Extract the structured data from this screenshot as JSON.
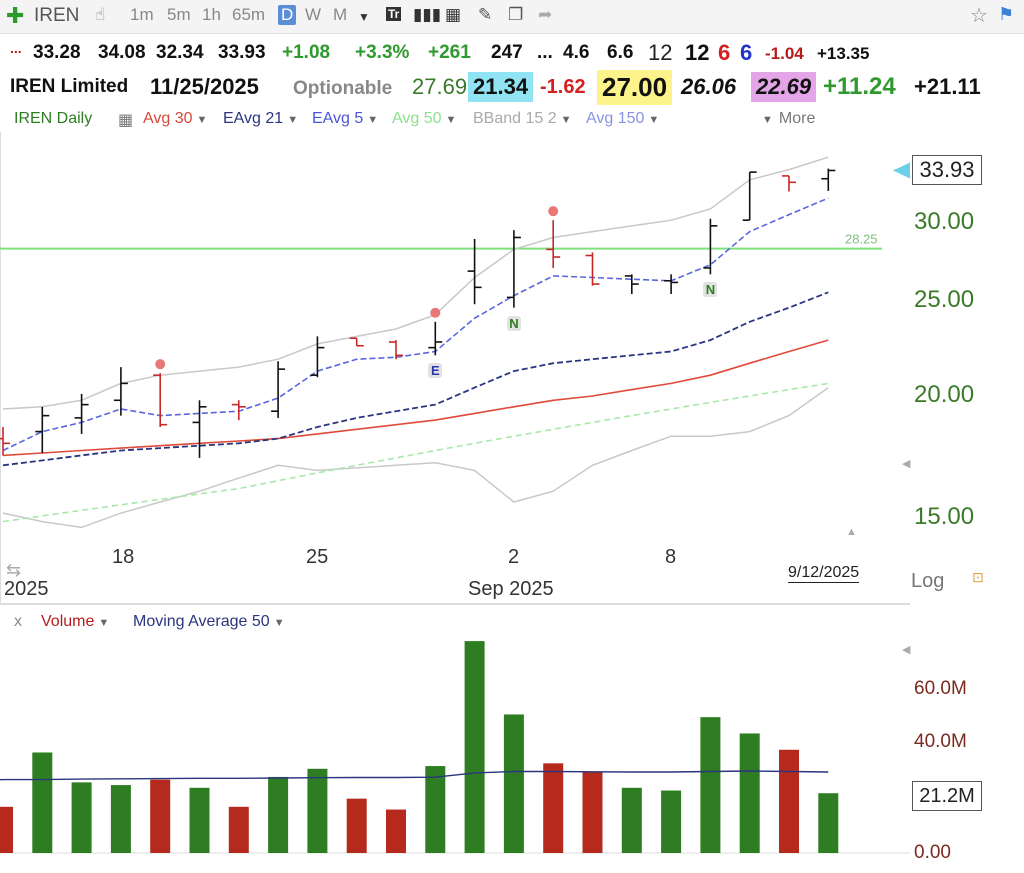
{
  "toolbar": {
    "symbol": "IREN",
    "timeframes": [
      "1m",
      "5m",
      "1h",
      "65m",
      "D",
      "W",
      "M"
    ],
    "active_timeframe": "D"
  },
  "quote_row1": {
    "prefix": "...",
    "open": "33.28",
    "high": "34.08",
    "low": "32.34",
    "close": "33.93",
    "change": "+1.08",
    "change_pct": "+3.3%",
    "v1": "+261",
    "v2": "247",
    "ellipsis": "...",
    "v3": "4.6",
    "v4": "6.6",
    "v5": "12",
    "v6": "12",
    "v7": "6",
    "v8": "6",
    "v9": "-1.04",
    "v10": "+13.35"
  },
  "quote_row2": {
    "company": "IREN Limited",
    "date": "11/25/2025",
    "optionable": "Optionable",
    "v1": "27.69",
    "v2": "21.34",
    "v3": "-1.62",
    "v4": "27.00",
    "v5": "26.06",
    "v6": "22.69",
    "v7": "+11.24",
    "v8": "+21.11"
  },
  "colors": {
    "up": "#2e7d22",
    "down": "#b71c1c",
    "accent": "#5b8ed6"
  },
  "indicators": {
    "title": "IREN Daily",
    "avg30": "Avg 30",
    "eavg21": "EAvg 21",
    "eavg5": "EAvg 5",
    "avg50": "Avg 50",
    "bband": "BBand 15 2",
    "avg150": "Avg 150",
    "more": "More"
  },
  "price_axis": {
    "labels": [
      "30.00",
      "25.00",
      "20.00",
      "15.00"
    ],
    "current": "33.93",
    "scale": "Log"
  },
  "horizontal_line": {
    "value": 28.25,
    "label": "28.25"
  },
  "date_axis": {
    "labels": [
      "18",
      "25",
      "2",
      "8"
    ],
    "month": "Sep 2025",
    "year_left": "2025",
    "end_date": "9/12/2025"
  },
  "volume_panel": {
    "close_x": "x",
    "volume_label": "Volume",
    "ma_label": "Moving Average 50",
    "axis_labels": [
      "60.0M",
      "40.0M",
      "0.00"
    ],
    "current": "21.2M"
  },
  "chart_data": [
    {
      "type": "ohlc",
      "scale": "log",
      "ylim": [
        14,
        35
      ],
      "candles": [
        {
          "o": 18.1,
          "h": 18.6,
          "l": 17.4,
          "c": 17.9,
          "up": false
        },
        {
          "o": 18.4,
          "h": 19.5,
          "l": 17.5,
          "c": 19.1,
          "up": true
        },
        {
          "o": 19.0,
          "h": 20.1,
          "l": 18.3,
          "c": 19.6,
          "up": true
        },
        {
          "o": 19.8,
          "h": 21.4,
          "l": 19.1,
          "c": 20.6,
          "up": true
        },
        {
          "o": 21.0,
          "h": 21.1,
          "l": 18.6,
          "c": 18.7,
          "up": false
        },
        {
          "o": 18.8,
          "h": 19.8,
          "l": 17.3,
          "c": 19.5,
          "up": true
        },
        {
          "o": 19.6,
          "h": 19.8,
          "l": 18.9,
          "c": 19.5,
          "up": false
        },
        {
          "o": 19.3,
          "h": 21.7,
          "l": 19.0,
          "c": 21.3,
          "up": true
        },
        {
          "o": 21.0,
          "h": 23.0,
          "l": 20.9,
          "c": 22.4,
          "up": true
        },
        {
          "o": 22.9,
          "h": 22.9,
          "l": 22.5,
          "c": 22.5,
          "up": false
        },
        {
          "o": 22.7,
          "h": 22.8,
          "l": 21.8,
          "c": 22.0,
          "up": false
        },
        {
          "o": 22.4,
          "h": 23.8,
          "l": 22.0,
          "c": 22.7,
          "up": true
        },
        {
          "o": 26.8,
          "h": 28.9,
          "l": 24.8,
          "c": 25.8,
          "up": true
        },
        {
          "o": 25.2,
          "h": 29.5,
          "l": 24.6,
          "c": 29.0,
          "up": true
        },
        {
          "o": 28.2,
          "h": 30.2,
          "l": 27.0,
          "c": 27.7,
          "up": false
        },
        {
          "o": 27.8,
          "h": 28.0,
          "l": 25.9,
          "c": 26.0,
          "up": false
        },
        {
          "o": 26.5,
          "h": 26.6,
          "l": 25.4,
          "c": 26.0,
          "up": true
        },
        {
          "o": 26.2,
          "h": 26.6,
          "l": 25.4,
          "c": 26.1,
          "up": true
        },
        {
          "o": 27.0,
          "h": 30.3,
          "l": 26.6,
          "c": 29.8,
          "up": true
        },
        {
          "o": 30.2,
          "h": 33.8,
          "l": 30.2,
          "c": 33.8,
          "up": true
        },
        {
          "o": 33.5,
          "h": 33.5,
          "l": 32.3,
          "c": 33.0,
          "up": false
        },
        {
          "o": 33.28,
          "h": 34.08,
          "l": 32.34,
          "c": 33.93,
          "up": true
        }
      ],
      "eavg5": [
        17.6,
        18.4,
        18.8,
        19.4,
        19.1,
        19.2,
        19.3,
        19.9,
        21.2,
        21.8,
        21.9,
        22.2,
        24.0,
        25.3,
        26.5,
        26.4,
        26.3,
        26.2,
        27.2,
        29.4,
        30.6,
        31.8
      ],
      "eavg21": [
        17.0,
        17.2,
        17.4,
        17.6,
        17.7,
        17.8,
        17.9,
        18.1,
        18.6,
        19.0,
        19.3,
        19.6,
        20.4,
        21.2,
        21.6,
        21.8,
        22.0,
        22.2,
        22.8,
        23.8,
        24.6,
        25.5
      ],
      "avg30": [
        17.4,
        17.5,
        17.6,
        17.7,
        17.8,
        17.9,
        18.0,
        18.1,
        18.3,
        18.5,
        18.7,
        18.9,
        19.2,
        19.5,
        19.8,
        20.0,
        20.3,
        20.6,
        21.0,
        21.6,
        22.2,
        22.8
      ],
      "avg50": [
        14.9,
        15.1,
        15.3,
        15.5,
        15.7,
        15.9,
        16.1,
        16.4,
        16.7,
        17.0,
        17.3,
        17.6,
        17.9,
        18.2,
        18.5,
        18.8,
        19.1,
        19.4,
        19.7,
        20.0,
        20.3,
        20.6
      ],
      "bband_upper": [
        19.4,
        19.5,
        19.8,
        20.6,
        21.0,
        21.2,
        21.4,
        21.8,
        22.6,
        23.0,
        23.4,
        24.2,
        26.4,
        28.2,
        29.0,
        29.4,
        29.8,
        30.2,
        31.0,
        33.2,
        34.0,
        35.0
      ],
      "bband_lower": [
        15.2,
        14.9,
        14.7,
        15.2,
        15.6,
        16.0,
        16.5,
        17.0,
        16.8,
        16.9,
        17.0,
        17.1,
        16.8,
        15.6,
        16.0,
        17.0,
        17.6,
        18.2,
        18.2,
        18.4,
        19.1,
        20.4
      ],
      "dots_above": [
        4,
        11,
        14
      ],
      "badges": [
        {
          "index": 11,
          "text": "E"
        },
        {
          "index": 13,
          "text": "N"
        },
        {
          "index": 18,
          "text": "N"
        }
      ]
    },
    {
      "type": "bar",
      "title": "Volume",
      "ylim": [
        0,
        80
      ],
      "values": [
        17,
        37,
        26,
        25,
        27,
        24,
        17,
        28,
        31,
        20,
        16,
        32,
        78,
        51,
        33,
        30,
        24,
        23,
        50,
        44,
        38,
        22
      ],
      "up": [
        false,
        true,
        true,
        true,
        false,
        true,
        false,
        true,
        true,
        false,
        false,
        true,
        true,
        true,
        false,
        false,
        true,
        true,
        true,
        true,
        false,
        true
      ],
      "ma50": [
        27,
        27,
        27.2,
        27.3,
        27.4,
        27.5,
        27.5,
        27.6,
        27.7,
        27.8,
        27.8,
        27.9,
        29.5,
        30.0,
        30.0,
        29.9,
        29.8,
        29.8,
        30.0,
        30.2,
        30.0,
        29.8
      ]
    }
  ]
}
